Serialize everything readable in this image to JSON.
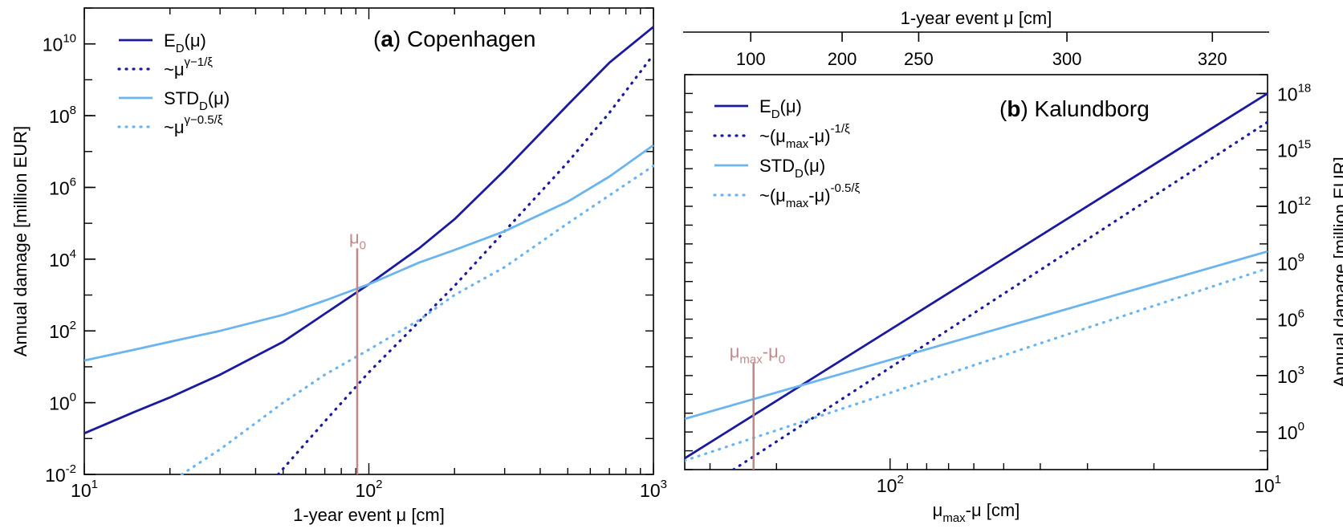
{
  "chart_data": [
    {
      "type": "line",
      "panel": "a",
      "title": "Copenhagen",
      "xlabel": "1-year event μ  [cm]",
      "ylabel": "Annual damage  [million EUR]",
      "x_scale": "log",
      "y_scale": "log",
      "xlim": [
        10,
        1000
      ],
      "ylim": [
        0.01,
        100000000000
      ],
      "x_ticks": [
        {
          "value": 10,
          "label": "10",
          "exp": "1"
        },
        {
          "value": 100,
          "label": "10",
          "exp": "2"
        },
        {
          "value": 1000,
          "label": "10",
          "exp": "3"
        }
      ],
      "y_ticks": [
        {
          "value": 0.01,
          "label": "10",
          "exp": "-2"
        },
        {
          "value": 1,
          "label": "10",
          "exp": "0"
        },
        {
          "value": 100,
          "label": "10",
          "exp": "2"
        },
        {
          "value": 10000,
          "label": "10",
          "exp": "4"
        },
        {
          "value": 1000000,
          "label": "10",
          "exp": "6"
        },
        {
          "value": 100000000,
          "label": "10",
          "exp": "8"
        },
        {
          "value": 10000000000,
          "label": "10",
          "exp": "10"
        }
      ],
      "legend_position": "top-left",
      "annotation": {
        "label": "μ",
        "sub": "0",
        "x": 91,
        "y_range": [
          0.01,
          20000
        ]
      },
      "series": [
        {
          "name": "E_D(μ)",
          "color": "#1a1aa0",
          "style": "solid",
          "x": [
            10,
            15,
            20,
            30,
            50,
            70,
            100,
            150,
            200,
            300,
            500,
            700,
            1000
          ],
          "y": [
            0.14,
            0.55,
            1.4,
            6,
            50,
            300,
            2000,
            20000,
            130000,
            3000000,
            200000000,
            3000000000,
            30000000000
          ]
        },
        {
          "name": "~μ^(γ−1/ξ)",
          "color": "#1a1aa0",
          "style": "dotted",
          "x": [
            48,
            70,
            100,
            150,
            200,
            300,
            500,
            700,
            1000
          ],
          "y": [
            0.01,
            0.3,
            7,
            180,
            1800,
            60000,
            5000000,
            120000000,
            5000000000
          ]
        },
        {
          "name": "STD_D(μ)",
          "color": "#6ab4f0",
          "style": "solid",
          "x": [
            10,
            15,
            20,
            30,
            50,
            70,
            100,
            150,
            200,
            300,
            500,
            700,
            1000
          ],
          "y": [
            15,
            30,
            50,
            100,
            280,
            700,
            2000,
            8000,
            18000,
            60000,
            400000,
            2000000,
            15000000
          ]
        },
        {
          "name": "~μ^(γ−0.5/ξ)",
          "color": "#6ab4f0",
          "style": "dotted",
          "x": [
            22,
            30,
            50,
            70,
            100,
            150,
            200,
            300,
            500,
            700,
            1000
          ],
          "y": [
            0.01,
            0.05,
            1,
            6,
            30,
            200,
            1000,
            6000,
            100000,
            600000,
            4000000
          ]
        }
      ],
      "legend": [
        {
          "text": "E",
          "sub": "D",
          "tail": "(μ)",
          "color": "#1a1aa0",
          "style": "solid"
        },
        {
          "text": "~μ",
          "sup": "γ−1/ξ",
          "color": "#1a1aa0",
          "style": "dotted"
        },
        {
          "text": "STD",
          "sub": "D",
          "tail": "(μ)",
          "color": "#6ab4f0",
          "style": "solid"
        },
        {
          "text": "~μ",
          "sup": "γ−0.5/ξ",
          "color": "#6ab4f0",
          "style": "dotted"
        }
      ]
    },
    {
      "type": "line",
      "panel": "b",
      "title": "Kalundborg",
      "xlabel": "μ_max-μ  [cm]",
      "top_xlabel": "1-year event μ  [cm]",
      "ylabel": "Annual damage  [million EUR]",
      "x_scale": "log-reversed",
      "y_scale": "log",
      "xlim": [
        350,
        10
      ],
      "ylim": [
        0.01,
        1e+19
      ],
      "x_ticks": [
        {
          "value": 100,
          "label": "10",
          "exp": "2"
        },
        {
          "value": 10,
          "label": "10",
          "exp": "1"
        }
      ],
      "top_x_ticks": [
        {
          "value": 234,
          "label": "100"
        },
        {
          "value": 134,
          "label": "200"
        },
        {
          "value": 84,
          "label": "250"
        },
        {
          "value": 34,
          "label": "300"
        },
        {
          "value": 14,
          "label": "320"
        }
      ],
      "y_ticks": [
        {
          "value": 1,
          "label": "10",
          "exp": "0"
        },
        {
          "value": 1000,
          "label": "10",
          "exp": "3"
        },
        {
          "value": 1000000,
          "label": "10",
          "exp": "6"
        },
        {
          "value": 1000000000,
          "label": "10",
          "exp": "9"
        },
        {
          "value": 1000000000000,
          "label": "10",
          "exp": "12"
        },
        {
          "value": 1000000000000000,
          "label": "10",
          "exp": "15"
        },
        {
          "value": 1000000000000000000,
          "label": "10",
          "exp": "18"
        }
      ],
      "legend_position": "top-left",
      "annotation": {
        "label": "μ",
        "sub": "max",
        "mid": "-μ",
        "sub2": "0",
        "x": 230,
        "y_range": [
          0.01,
          5000
        ]
      },
      "series": [
        {
          "name": "E_D(μ)",
          "color": "#1a1aa0",
          "style": "solid",
          "x": [
            350,
            10
          ],
          "y": [
            0.04,
            1e+18
          ]
        },
        {
          "name": "~(μ_max-μ)^(-1/ξ)",
          "color": "#1a1aa0",
          "style": "dotted",
          "x": [
            260,
            10
          ],
          "y": [
            0.01,
            3e+16
          ]
        },
        {
          "name": "STD_D(μ)",
          "color": "#6ab4f0",
          "style": "solid",
          "x": [
            350,
            10
          ],
          "y": [
            5,
            4000000000
          ]
        },
        {
          "name": "~(μ_max-μ)^(-0.5/ξ)",
          "color": "#6ab4f0",
          "style": "dotted",
          "x": [
            350,
            10
          ],
          "y": [
            0.03,
            500000000
          ]
        }
      ],
      "legend": [
        {
          "text": "E",
          "sub": "D",
          "tail": "(μ)",
          "color": "#1a1aa0",
          "style": "solid"
        },
        {
          "text": "~(μ",
          "sub": "max",
          "tail": "-μ)",
          "sup": "-1/ξ",
          "color": "#1a1aa0",
          "style": "dotted"
        },
        {
          "text": "STD",
          "sub": "D",
          "tail": "(μ)",
          "color": "#6ab4f0",
          "style": "solid"
        },
        {
          "text": "~(μ",
          "sub": "max",
          "tail": "-μ)",
          "sup": "-0.5/ξ",
          "color": "#6ab4f0",
          "style": "dotted"
        }
      ]
    }
  ]
}
